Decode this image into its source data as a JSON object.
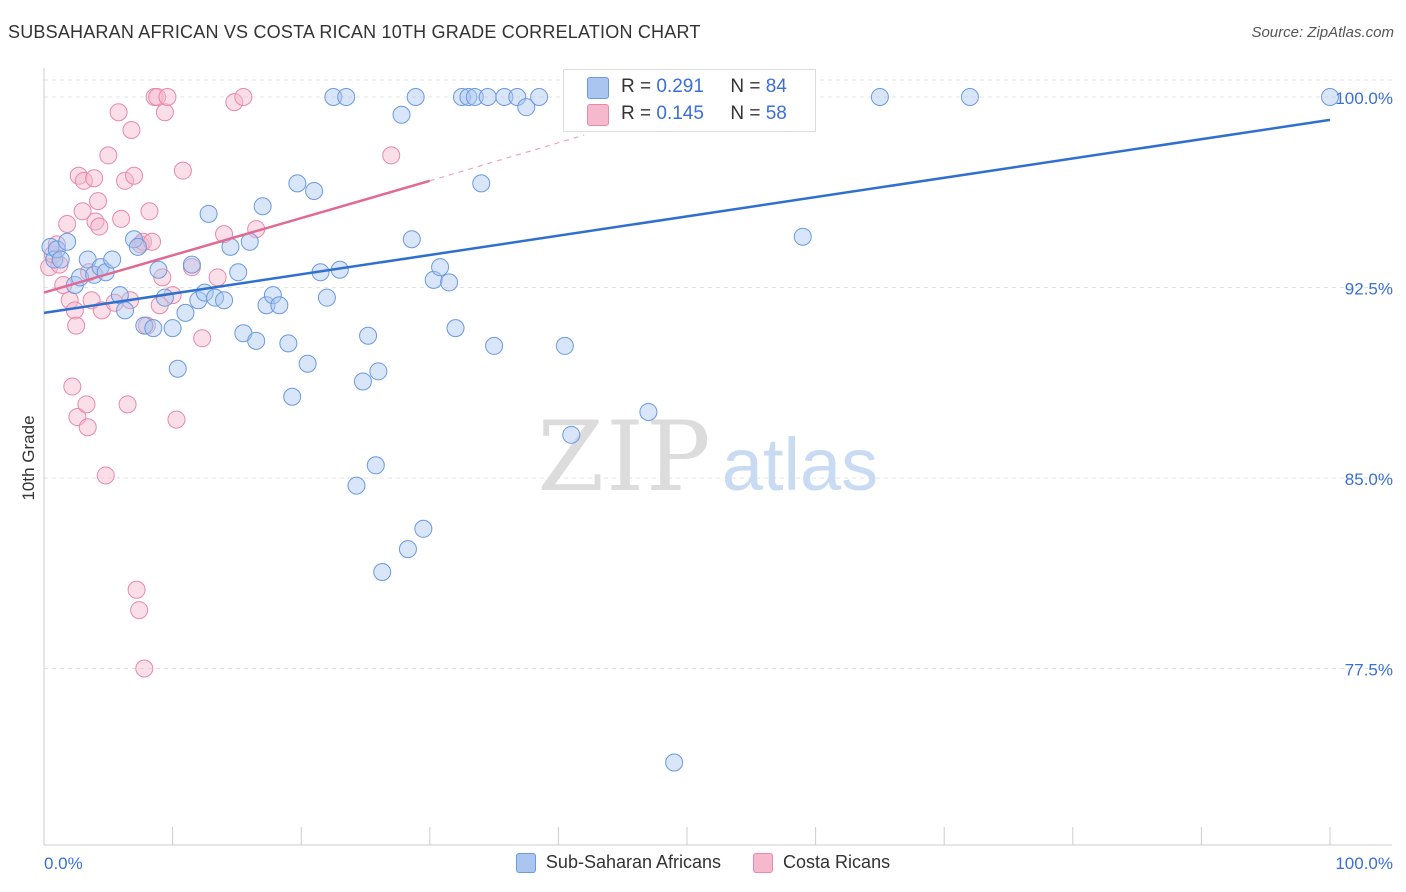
{
  "title": "SUBSAHARAN AFRICAN VS COSTA RICAN 10TH GRADE CORRELATION CHART",
  "source": "Source: ZipAtlas.com",
  "watermark": {
    "zip": "ZIP",
    "atlas": "atlas"
  },
  "colors": {
    "blue_fill": "#aac6f0",
    "blue_stroke": "#6a9ae0",
    "blue_line": "#2f6fcf",
    "pink_fill": "#f5b8cc",
    "pink_stroke": "#e889a8",
    "pink_line": "#e06a93",
    "axis_label": "#3a6fd6",
    "grid": "#e3e3e3"
  },
  "stats": {
    "r_label": "R =",
    "n_label": "N =",
    "rows": [
      {
        "series": "Sub-Saharan Africans",
        "r": "0.291",
        "n": "84"
      },
      {
        "series": "Costa Ricans",
        "r": "0.145",
        "n": "58"
      }
    ]
  },
  "chart_data": {
    "type": "scatter",
    "title": "SUBSAHARAN AFRICAN VS COSTA RICAN 10TH GRADE CORRELATION CHART",
    "xlabel": "",
    "ylabel": "10th Grade",
    "xlim": [
      0,
      100
    ],
    "ylim": [
      70.8,
      100.8
    ],
    "x_tick_labels": [
      "0.0%",
      "100.0%"
    ],
    "y_ticks": [
      77.5,
      85.0,
      92.5,
      100.0
    ],
    "y_tick_labels": [
      "77.5%",
      "85.0%",
      "92.5%",
      "100.0%"
    ],
    "grid": true,
    "legend": [
      "Sub-Saharan Africans",
      "Costa Ricans"
    ],
    "series": [
      {
        "name": "Sub-Saharan Africans",
        "trend": {
          "x": [
            0,
            100
          ],
          "y": [
            91.5,
            99.1
          ]
        },
        "points": [
          [
            0.5,
            94.1
          ],
          [
            0.8,
            93.6
          ],
          [
            1.0,
            94.0
          ],
          [
            1.3,
            93.6
          ],
          [
            1.8,
            94.3
          ],
          [
            2.4,
            92.6
          ],
          [
            2.8,
            92.9
          ],
          [
            3.4,
            93.6
          ],
          [
            3.9,
            93.0
          ],
          [
            4.4,
            93.3
          ],
          [
            4.8,
            93.1
          ],
          [
            5.3,
            93.6
          ],
          [
            5.9,
            92.2
          ],
          [
            6.3,
            91.6
          ],
          [
            7.0,
            94.4
          ],
          [
            7.3,
            94.1
          ],
          [
            7.8,
            91.0
          ],
          [
            8.5,
            90.9
          ],
          [
            8.9,
            93.2
          ],
          [
            9.4,
            92.1
          ],
          [
            10.0,
            90.9
          ],
          [
            10.4,
            89.3
          ],
          [
            11.0,
            91.5
          ],
          [
            11.5,
            93.4
          ],
          [
            12.0,
            92.0
          ],
          [
            12.5,
            92.3
          ],
          [
            12.8,
            95.4
          ],
          [
            13.3,
            92.1
          ],
          [
            14.0,
            92.0
          ],
          [
            14.5,
            94.1
          ],
          [
            15.1,
            93.1
          ],
          [
            15.5,
            90.7
          ],
          [
            16.0,
            94.3
          ],
          [
            16.5,
            90.4
          ],
          [
            17.0,
            95.7
          ],
          [
            17.3,
            91.8
          ],
          [
            17.8,
            92.2
          ],
          [
            18.3,
            91.8
          ],
          [
            19.0,
            90.3
          ],
          [
            19.3,
            88.2
          ],
          [
            19.7,
            96.6
          ],
          [
            20.5,
            89.5
          ],
          [
            21.0,
            96.3
          ],
          [
            21.5,
            93.1
          ],
          [
            22.0,
            92.1
          ],
          [
            22.5,
            100.0
          ],
          [
            23.0,
            93.2
          ],
          [
            23.5,
            100.0
          ],
          [
            24.3,
            84.7
          ],
          [
            24.8,
            88.8
          ],
          [
            25.2,
            90.6
          ],
          [
            25.8,
            85.5
          ],
          [
            26.0,
            89.2
          ],
          [
            26.3,
            81.3
          ],
          [
            27.8,
            99.3
          ],
          [
            28.3,
            82.2
          ],
          [
            28.6,
            94.4
          ],
          [
            28.9,
            100.0
          ],
          [
            29.5,
            83.0
          ],
          [
            30.3,
            92.8
          ],
          [
            30.8,
            93.3
          ],
          [
            31.5,
            92.7
          ],
          [
            32.0,
            90.9
          ],
          [
            32.5,
            100.0
          ],
          [
            33.0,
            100.0
          ],
          [
            33.5,
            100.0
          ],
          [
            34.0,
            96.6
          ],
          [
            34.5,
            100.0
          ],
          [
            35.0,
            90.2
          ],
          [
            35.8,
            100.0
          ],
          [
            36.8,
            100.0
          ],
          [
            37.5,
            99.6
          ],
          [
            38.5,
            100.0
          ],
          [
            40.5,
            90.2
          ],
          [
            41.0,
            86.7
          ],
          [
            41.5,
            99.2
          ],
          [
            42.5,
            99.2
          ],
          [
            44.0,
            100.0
          ],
          [
            47.0,
            87.6
          ],
          [
            49.0,
            73.8
          ],
          [
            59.0,
            94.5
          ],
          [
            65.0,
            100.0
          ],
          [
            72.0,
            100.0
          ],
          [
            100.0,
            100.0
          ]
        ]
      },
      {
        "name": "Costa Ricans",
        "trend": {
          "x": [
            0,
            30
          ],
          "y": [
            92.3,
            96.7
          ]
        },
        "trend_dashed": {
          "x": [
            30,
            42
          ],
          "y": [
            96.7,
            98.5
          ]
        },
        "points": [
          [
            0.4,
            93.3
          ],
          [
            0.7,
            93.8
          ],
          [
            1.0,
            94.2
          ],
          [
            1.2,
            93.4
          ],
          [
            1.5,
            92.6
          ],
          [
            1.8,
            95.0
          ],
          [
            2.0,
            92.0
          ],
          [
            2.2,
            88.6
          ],
          [
            2.4,
            91.6
          ],
          [
            2.5,
            91.0
          ],
          [
            2.6,
            87.4
          ],
          [
            2.7,
            96.9
          ],
          [
            3.0,
            95.5
          ],
          [
            3.1,
            96.7
          ],
          [
            3.3,
            87.9
          ],
          [
            3.4,
            87.0
          ],
          [
            3.5,
            93.1
          ],
          [
            3.7,
            92.0
          ],
          [
            3.9,
            96.8
          ],
          [
            4.0,
            95.1
          ],
          [
            4.2,
            95.9
          ],
          [
            4.3,
            94.9
          ],
          [
            4.5,
            91.6
          ],
          [
            4.8,
            85.1
          ],
          [
            5.0,
            97.7
          ],
          [
            5.5,
            91.9
          ],
          [
            5.8,
            99.4
          ],
          [
            6.0,
            95.2
          ],
          [
            6.3,
            96.7
          ],
          [
            6.5,
            87.9
          ],
          [
            6.7,
            92.0
          ],
          [
            6.8,
            98.7
          ],
          [
            7.0,
            96.9
          ],
          [
            7.2,
            80.6
          ],
          [
            7.4,
            79.8
          ],
          [
            7.5,
            94.2
          ],
          [
            7.7,
            94.3
          ],
          [
            7.8,
            77.5
          ],
          [
            8.0,
            91.0
          ],
          [
            8.2,
            95.5
          ],
          [
            8.4,
            94.3
          ],
          [
            8.6,
            100.0
          ],
          [
            8.8,
            100.0
          ],
          [
            9.0,
            91.8
          ],
          [
            9.2,
            92.9
          ],
          [
            9.4,
            99.4
          ],
          [
            9.6,
            100.0
          ],
          [
            10.0,
            92.2
          ],
          [
            10.3,
            87.3
          ],
          [
            10.8,
            97.1
          ],
          [
            11.5,
            93.3
          ],
          [
            12.3,
            90.5
          ],
          [
            13.5,
            92.9
          ],
          [
            14.0,
            94.6
          ],
          [
            14.8,
            99.8
          ],
          [
            15.5,
            100.0
          ],
          [
            16.5,
            94.8
          ],
          [
            27.0,
            97.7
          ]
        ]
      }
    ]
  }
}
